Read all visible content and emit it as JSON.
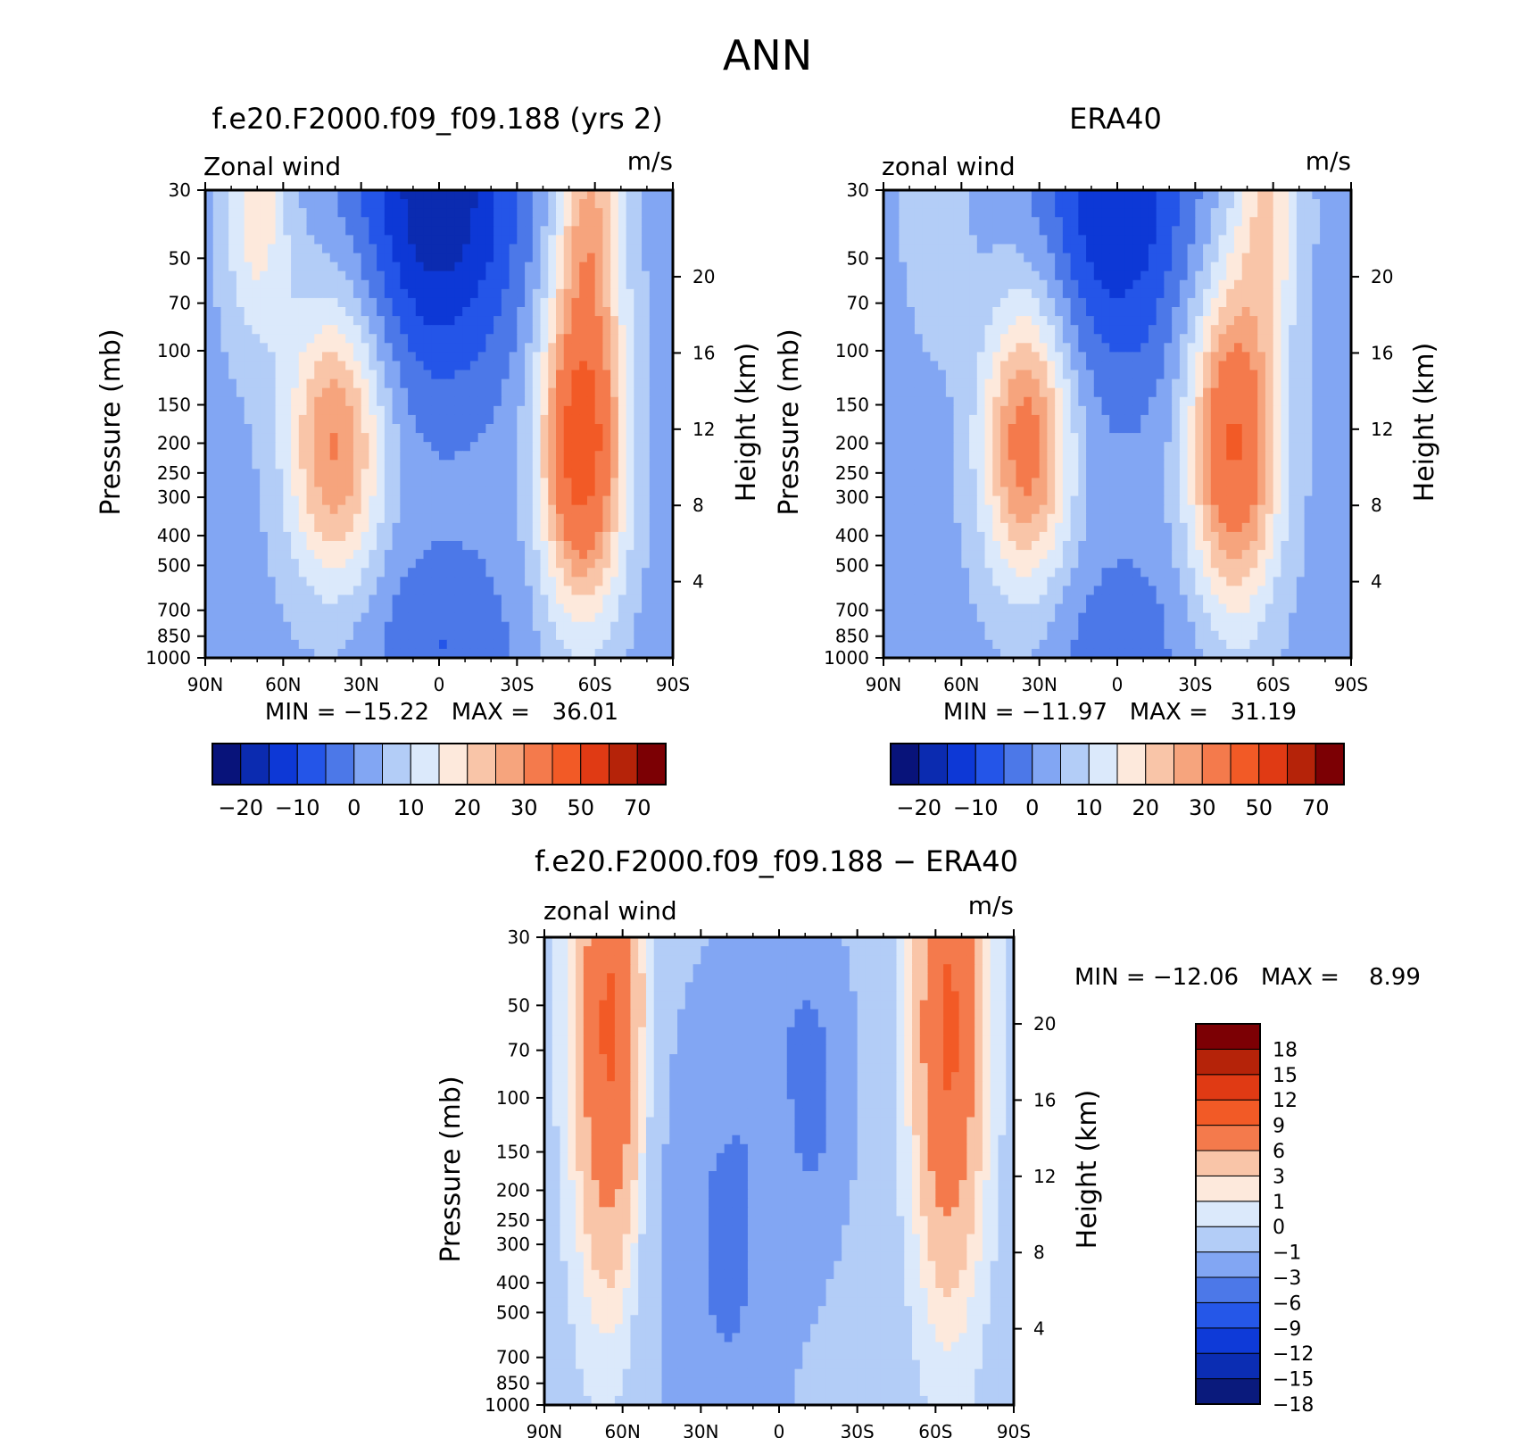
{
  "figure": {
    "title": "ANN"
  },
  "colors": {
    "wind_palette": [
      "#08137a",
      "#0b2bb0",
      "#0d38d6",
      "#2455e8",
      "#4c78e8",
      "#82a6f3",
      "#b3cdf7",
      "#dbe9fb",
      "#fde9dc",
      "#f9c5a8",
      "#f6a47d",
      "#f47a4c",
      "#f25a26",
      "#e03a14",
      "#b52309",
      "#7c0004"
    ],
    "diff_palette": [
      "#0a1a7c",
      "#0b2db3",
      "#0e3ad8",
      "#2557e8",
      "#4c78e8",
      "#82a6f3",
      "#b3cdf7",
      "#dbe9fb",
      "#fde9dc",
      "#f9c5a8",
      "#f47a4c",
      "#f25a26",
      "#e03a14",
      "#b52309",
      "#7c0004"
    ]
  },
  "chart_data": [
    {
      "id": "model",
      "type": "heatmap",
      "title": "f.e20.F2000.f09_f09.188 (yrs 2)",
      "left_label": "Zonal wind",
      "right_label": "m/s",
      "ylabel": "Pressure (mb)",
      "ylabel_right": "Height (km)",
      "x_ticks": [
        "90N",
        "60N",
        "30N",
        "0",
        "30S",
        "60S",
        "90S"
      ],
      "y_ticks": [
        30,
        50,
        70,
        100,
        150,
        200,
        250,
        300,
        400,
        500,
        700,
        850,
        1000
      ],
      "y_ticks_right": [
        4,
        8,
        12,
        16,
        20
      ],
      "stats_text": "MIN = −15.22   MAX =   36.01",
      "min": -15.22,
      "max": 36.01,
      "levels": [
        -25,
        -20,
        -15,
        -10,
        -5,
        0,
        5,
        10,
        15,
        20,
        25,
        30,
        40,
        50,
        60,
        70
      ],
      "colorbar_labels": [
        "−20",
        "−10",
        "0",
        "10",
        "20",
        "30",
        "50",
        "70"
      ],
      "jets": [
        {
          "lat": 0,
          "p": 30,
          "spread_lat": 22,
          "spread_p": 1.0,
          "amp": -22
        },
        {
          "lat": 0,
          "p": 900,
          "spread_lat": 20,
          "spread_p": 0.5,
          "amp": -8
        },
        {
          "lat": -55,
          "p": 200,
          "spread_lat": 11,
          "spread_p": 0.85,
          "amp": 44
        },
        {
          "lat": -58,
          "p": 35,
          "spread_lat": 9,
          "spread_p": 0.6,
          "amp": 20
        },
        {
          "lat": 40,
          "p": 200,
          "spread_lat": 13,
          "spread_p": 0.75,
          "amp": 28
        },
        {
          "lat": 70,
          "p": 35,
          "spread_lat": 9,
          "spread_p": 0.7,
          "amp": 15
        }
      ],
      "background": 3
    },
    {
      "id": "obs",
      "type": "heatmap",
      "title": "ERA40",
      "left_label": "zonal wind",
      "right_label": "m/s",
      "ylabel": "Pressure (mb)",
      "ylabel_right": "Height (km)",
      "x_ticks": [
        "90N",
        "60N",
        "30N",
        "0",
        "30S",
        "60S",
        "90S"
      ],
      "y_ticks": [
        30,
        50,
        70,
        100,
        150,
        200,
        250,
        300,
        400,
        500,
        700,
        850,
        1000
      ],
      "y_ticks_right": [
        4,
        8,
        12,
        16,
        20
      ],
      "stats_text": "MIN = −11.97   MAX =   31.19",
      "min": -11.97,
      "max": 31.19,
      "levels": [
        -25,
        -20,
        -15,
        -10,
        -5,
        0,
        5,
        10,
        15,
        20,
        25,
        30,
        40,
        50,
        60,
        70
      ],
      "colorbar_labels": [
        "−20",
        "−10",
        "0",
        "10",
        "20",
        "30",
        "50",
        "70"
      ],
      "jets": [
        {
          "lat": 0,
          "p": 30,
          "spread_lat": 20,
          "spread_p": 1.0,
          "amp": -18
        },
        {
          "lat": 0,
          "p": 900,
          "spread_lat": 20,
          "spread_p": 0.5,
          "amp": -6
        },
        {
          "lat": -45,
          "p": 200,
          "spread_lat": 12,
          "spread_p": 0.85,
          "amp": 38
        },
        {
          "lat": -58,
          "p": 35,
          "spread_lat": 9,
          "spread_p": 0.6,
          "amp": 16
        },
        {
          "lat": 35,
          "p": 200,
          "spread_lat": 12,
          "spread_p": 0.75,
          "amp": 31
        },
        {
          "lat": 70,
          "p": 35,
          "spread_lat": 9,
          "spread_p": 0.7,
          "amp": 6
        }
      ],
      "background": 3
    },
    {
      "id": "diff",
      "type": "heatmap",
      "title": "f.e20.F2000.f09_f09.188 − ERA40",
      "left_label": "zonal wind",
      "right_label": "m/s",
      "ylabel": "Pressure (mb)",
      "ylabel_right": "Height (km)",
      "x_ticks": [
        "90N",
        "60N",
        "30N",
        "0",
        "30S",
        "60S",
        "90S"
      ],
      "y_ticks": [
        30,
        50,
        70,
        100,
        150,
        200,
        250,
        300,
        400,
        500,
        700,
        850,
        1000
      ],
      "y_ticks_right": [
        4,
        8,
        12,
        16,
        20
      ],
      "stats_text": "MIN = −12.06   MAX =    8.99",
      "min": -12.06,
      "max": 8.99,
      "levels": [
        -21,
        -18,
        -15,
        -12,
        -9,
        -6,
        -3,
        -1,
        0,
        1,
        3,
        6,
        9,
        12,
        15,
        18,
        21
      ],
      "colorbar_labels": [
        "18",
        "15",
        "12",
        "9",
        "6",
        "3",
        "1",
        "0",
        "−1",
        "−3",
        "−6",
        "−9",
        "−12",
        "−15",
        "−18"
      ],
      "jets": [
        {
          "lat": 65,
          "p": 60,
          "spread_lat": 9,
          "spread_p": 1.3,
          "amp": 8
        },
        {
          "lat": -65,
          "p": 60,
          "spread_lat": 9,
          "spread_p": 1.3,
          "amp": 8
        },
        {
          "lat": 20,
          "p": 300,
          "spread_lat": 18,
          "spread_p": 1.5,
          "amp": -5
        },
        {
          "lat": -12,
          "p": 90,
          "spread_lat": 12,
          "spread_p": 0.9,
          "amp": -5
        },
        {
          "lat": 0,
          "p": 200,
          "spread_lat": 5,
          "spread_p": 0.6,
          "amp": 3
        }
      ],
      "background": -1.5
    }
  ]
}
